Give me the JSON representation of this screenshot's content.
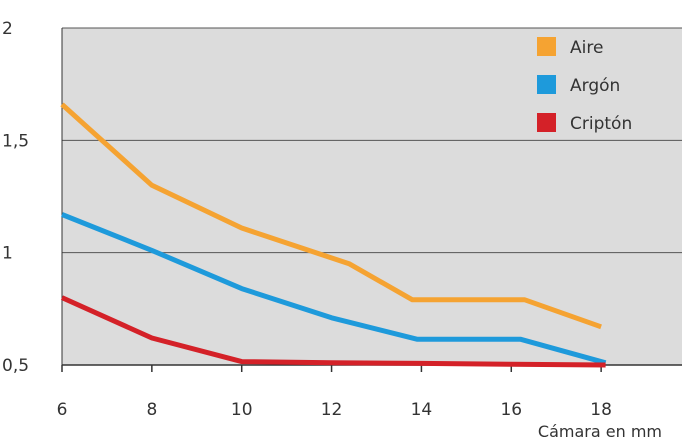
{
  "chart_data": {
    "type": "line",
    "title": "",
    "xlabel": "Cámara en mm",
    "ylabel": "",
    "x": [
      6,
      8,
      10,
      12,
      12.4,
      14,
      16.3,
      18
    ],
    "xticks": [
      "6",
      "8",
      "10",
      "12",
      "14",
      "16",
      "18"
    ],
    "xtick_values": [
      6,
      8,
      10,
      12,
      14,
      16,
      18
    ],
    "yticks": [
      "0,5",
      "1",
      "1,5",
      "2"
    ],
    "ytick_values": [
      0.5,
      1,
      1.5,
      2
    ],
    "xlim": [
      6,
      19.8
    ],
    "ylim": [
      0.5,
      2
    ],
    "grid": true,
    "legend_position": "top-right",
    "series": [
      {
        "name": "Aire",
        "color": "#F5A332",
        "points": [
          [
            6,
            1.66
          ],
          [
            8,
            1.3
          ],
          [
            10,
            1.11
          ],
          [
            12.4,
            0.95
          ],
          [
            13.8,
            0.79
          ],
          [
            16.3,
            0.79
          ],
          [
            18,
            0.67
          ]
        ]
      },
      {
        "name": "Argón",
        "color": "#1E9ADB",
        "points": [
          [
            6,
            1.17
          ],
          [
            8,
            1.01
          ],
          [
            10,
            0.84
          ],
          [
            12,
            0.71
          ],
          [
            13.9,
            0.615
          ],
          [
            16.2,
            0.615
          ],
          [
            18.1,
            0.51
          ]
        ]
      },
      {
        "name": "Criptón",
        "color": "#D42128",
        "points": [
          [
            6,
            0.8
          ],
          [
            8,
            0.62
          ],
          [
            10,
            0.515
          ],
          [
            12,
            0.51
          ],
          [
            14,
            0.507
          ],
          [
            16,
            0.503
          ],
          [
            18.1,
            0.5
          ]
        ]
      }
    ]
  }
}
